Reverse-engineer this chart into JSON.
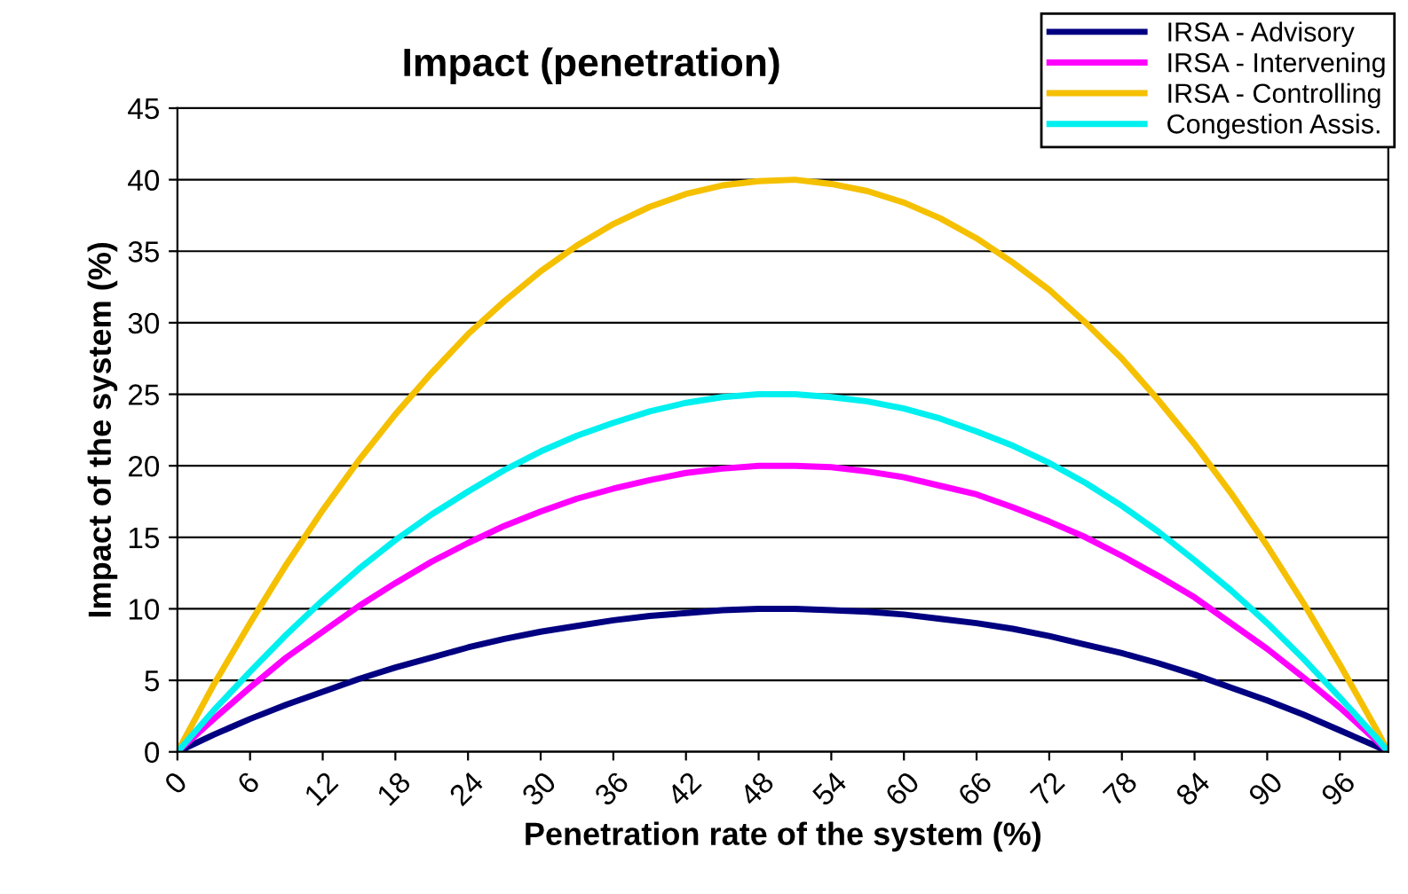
{
  "chart_data": {
    "type": "line",
    "title": "Impact (penetration)",
    "xlabel": "Penetration rate of the system (%)",
    "ylabel": "Impact of the system (%)",
    "x": [
      0,
      3,
      6,
      9,
      12,
      15,
      18,
      21,
      24,
      27,
      30,
      33,
      36,
      39,
      42,
      45,
      48,
      51,
      54,
      57,
      60,
      63,
      66,
      69,
      72,
      75,
      78,
      81,
      84,
      87,
      90,
      93,
      96,
      99,
      100
    ],
    "xlim": [
      0,
      100
    ],
    "xticks": [
      0,
      6,
      12,
      18,
      24,
      30,
      36,
      42,
      48,
      54,
      60,
      66,
      72,
      78,
      84,
      90,
      96
    ],
    "ylim": [
      0,
      45
    ],
    "yticks": [
      0,
      5,
      10,
      15,
      20,
      25,
      30,
      35,
      40,
      45
    ],
    "grid": "y",
    "legend": "top right",
    "marker": "none",
    "line_style": "solid",
    "series": [
      {
        "name": "IRSA - Advisory",
        "color": "#000080",
        "values": [
          0,
          1.2,
          2.3,
          3.3,
          4.2,
          5.1,
          5.9,
          6.6,
          7.3,
          7.9,
          8.4,
          8.8,
          9.2,
          9.5,
          9.7,
          9.9,
          10,
          10,
          9.9,
          9.8,
          9.6,
          9.3,
          9,
          8.6,
          8.1,
          7.5,
          6.9,
          6.2,
          5.4,
          4.5,
          3.6,
          2.6,
          1.5,
          0.4,
          0
        ]
      },
      {
        "name": "IRSA - Intervening",
        "color": "#ff00ff",
        "values": [
          0,
          2.3,
          4.5,
          6.6,
          8.4,
          10.2,
          11.8,
          13.3,
          14.6,
          15.8,
          16.8,
          17.7,
          18.4,
          19,
          19.5,
          19.8,
          20,
          20,
          19.9,
          19.6,
          19.2,
          18.6,
          18,
          17.1,
          16.1,
          15,
          13.7,
          12.3,
          10.8,
          9,
          7.2,
          5.2,
          3.1,
          0.8,
          0
        ]
      },
      {
        "name": "IRSA - Controlling",
        "color": "#f5c000",
        "values": [
          0,
          4.7,
          9,
          13.1,
          16.9,
          20.4,
          23.6,
          26.5,
          29.2,
          31.5,
          33.6,
          35.4,
          36.9,
          38.1,
          39,
          39.6,
          39.9,
          40,
          39.7,
          39.2,
          38.4,
          37.3,
          35.9,
          34.2,
          32.3,
          30,
          27.5,
          24.6,
          21.5,
          18.1,
          14.4,
          10.4,
          6.1,
          1.6,
          0
        ]
      },
      {
        "name": "Congestion Assis.",
        "color": "#00f0f0",
        "values": [
          0,
          2.9,
          5.6,
          8.2,
          10.6,
          12.8,
          14.8,
          16.6,
          18.2,
          19.7,
          21,
          22.1,
          23,
          23.8,
          24.4,
          24.8,
          25,
          25,
          24.8,
          24.5,
          24,
          23.3,
          22.4,
          21.4,
          20.2,
          18.8,
          17.2,
          15.4,
          13.4,
          11.3,
          9,
          6.5,
          3.8,
          1,
          0
        ]
      }
    ]
  }
}
